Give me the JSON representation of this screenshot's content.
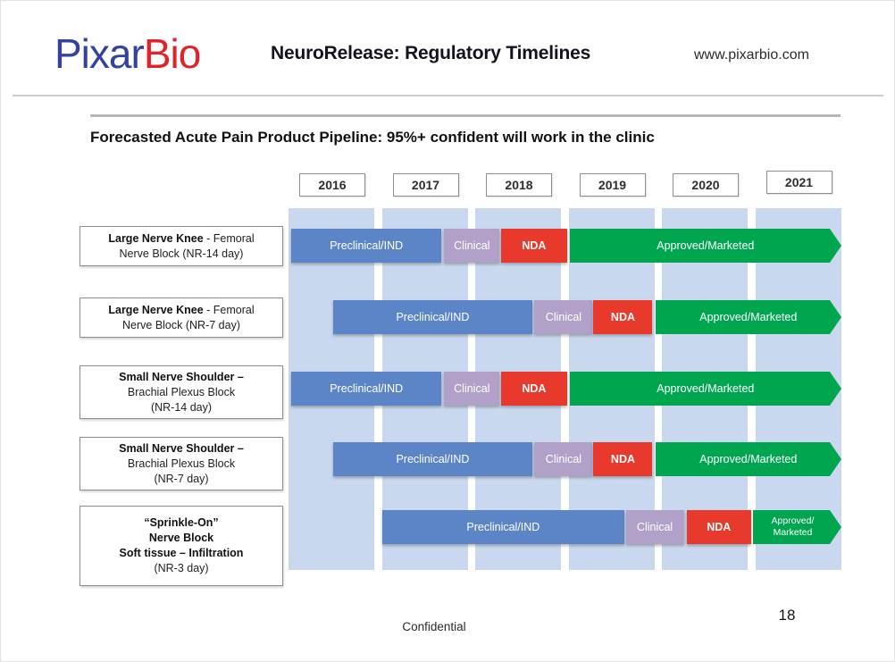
{
  "header": {
    "logo": {
      "part1": "Pixar",
      "part2": "Bio",
      "part1_color": "#3442a0",
      "part2_color": "#e2222a"
    },
    "title": "NeuroRelease: Regulatory Timelines",
    "website": "www.pixarbio.com"
  },
  "footer": {
    "confidential": "Confidential",
    "page_number": "18"
  },
  "chart_data": {
    "type": "gantt",
    "title": "Forecasted Acute Pain Product Pipeline: 95%+ confident will work in the clinic",
    "x_range": [
      2016,
      2022
    ],
    "years": [
      "2016",
      "2017",
      "2018",
      "2019",
      "2020",
      "2021"
    ],
    "legend_position": "none",
    "grid": "vertical-year-bands",
    "background_band_color": "#c9d8ee",
    "phase_colors": {
      "preclinical": "#5b85c6",
      "clinical": "#b1a1c8",
      "nda": "#e8392d",
      "approved": "#00a64f"
    },
    "rows": [
      {
        "product": "Large Nerve Knee - Femoral Nerve Block (NR-14 day)",
        "label_lines": [
          [
            {
              "t": "Large Nerve Knee",
              "b": true
            },
            {
              "t": " - Femoral",
              "b": false
            }
          ],
          [
            {
              "t": "Nerve Block (NR-14 day)",
              "b": false
            }
          ]
        ],
        "segments": [
          {
            "phase_key": "preclinical",
            "label": "Preclinical/IND",
            "start": 2016.03,
            "end": 2017.66
          },
          {
            "phase_key": "clinical",
            "label": "Clinical",
            "start": 2017.69,
            "end": 2018.29
          },
          {
            "phase_key": "nda",
            "label": "NDA",
            "start": 2018.31,
            "end": 2019.02
          },
          {
            "phase_key": "approved",
            "label": "Approved/Marketed",
            "start": 2019.05,
            "end": 2022.0,
            "arrow": true
          }
        ]
      },
      {
        "product": "Large Nerve Knee - Femoral Nerve Block (NR-7 day)",
        "label_lines": [
          [
            {
              "t": "Large Nerve Knee",
              "b": true
            },
            {
              "t": " - Femoral",
              "b": false
            }
          ],
          [
            {
              "t": "Nerve Block (NR-7 day)",
              "b": false
            }
          ]
        ],
        "segments": [
          {
            "phase_key": "preclinical",
            "label": "Preclinical/IND",
            "start": 2016.48,
            "end": 2018.65
          },
          {
            "phase_key": "clinical",
            "label": "Clinical",
            "start": 2018.67,
            "end": 2019.3
          },
          {
            "phase_key": "nda",
            "label": "NDA",
            "start": 2019.31,
            "end": 2019.95
          },
          {
            "phase_key": "approved",
            "label": "Approved/Marketed",
            "start": 2019.98,
            "end": 2022.0,
            "arrow": true
          }
        ]
      },
      {
        "product": "Small Nerve Shoulder – Brachial Plexus Block (NR-14 day)",
        "label_lines": [
          [
            {
              "t": "Small Nerve Shoulder –",
              "b": true
            }
          ],
          [
            {
              "t": "Brachial Plexus Block",
              "b": false
            }
          ],
          [
            {
              "t": "(NR-14 day)",
              "b": false
            }
          ]
        ],
        "segments": [
          {
            "phase_key": "preclinical",
            "label": "Preclinical/IND",
            "start": 2016.03,
            "end": 2017.66
          },
          {
            "phase_key": "clinical",
            "label": "Clinical",
            "start": 2017.69,
            "end": 2018.29
          },
          {
            "phase_key": "nda",
            "label": "NDA",
            "start": 2018.31,
            "end": 2019.02
          },
          {
            "phase_key": "approved",
            "label": "Approved/Marketed",
            "start": 2019.05,
            "end": 2022.0,
            "arrow": true
          }
        ]
      },
      {
        "product": "Small Nerve Shoulder – Brachial Plexus Block (NR-7 day)",
        "label_lines": [
          [
            {
              "t": "Small Nerve Shoulder –",
              "b": true
            }
          ],
          [
            {
              "t": "Brachial Plexus Block",
              "b": false
            }
          ],
          [
            {
              "t": "(NR-7 day)",
              "b": false
            }
          ]
        ],
        "segments": [
          {
            "phase_key": "preclinical",
            "label": "Preclinical/IND",
            "start": 2016.48,
            "end": 2018.65
          },
          {
            "phase_key": "clinical",
            "label": "Clinical",
            "start": 2018.67,
            "end": 2019.3
          },
          {
            "phase_key": "nda",
            "label": "NDA",
            "start": 2019.31,
            "end": 2019.95
          },
          {
            "phase_key": "approved",
            "label": "Approved/Marketed",
            "start": 2019.98,
            "end": 2022.0,
            "arrow": true
          }
        ]
      },
      {
        "product": "“Sprinkle-On” Nerve Block Soft tissue – Infiltration (NR-3 day)",
        "label_lines": [
          [
            {
              "t": "“Sprinkle-On”",
              "b": true
            }
          ],
          [
            {
              "t": "Nerve Block",
              "b": true
            }
          ],
          [
            {
              "t": "Soft tissue – Infiltration",
              "b": true
            }
          ],
          [
            {
              "t": "(NR-3 day)",
              "b": false
            }
          ]
        ],
        "segments": [
          {
            "phase_key": "preclinical",
            "label": "Preclinical/IND",
            "start": 2017.02,
            "end": 2019.64
          },
          {
            "phase_key": "clinical",
            "label": "Clinical",
            "start": 2019.66,
            "end": 2020.29
          },
          {
            "phase_key": "nda",
            "label": "NDA",
            "start": 2020.32,
            "end": 2021.02
          },
          {
            "phase_key": "approved",
            "label": "Approved/Marketed",
            "start": 2021.04,
            "end": 2022.0,
            "arrow": true
          }
        ]
      }
    ]
  }
}
